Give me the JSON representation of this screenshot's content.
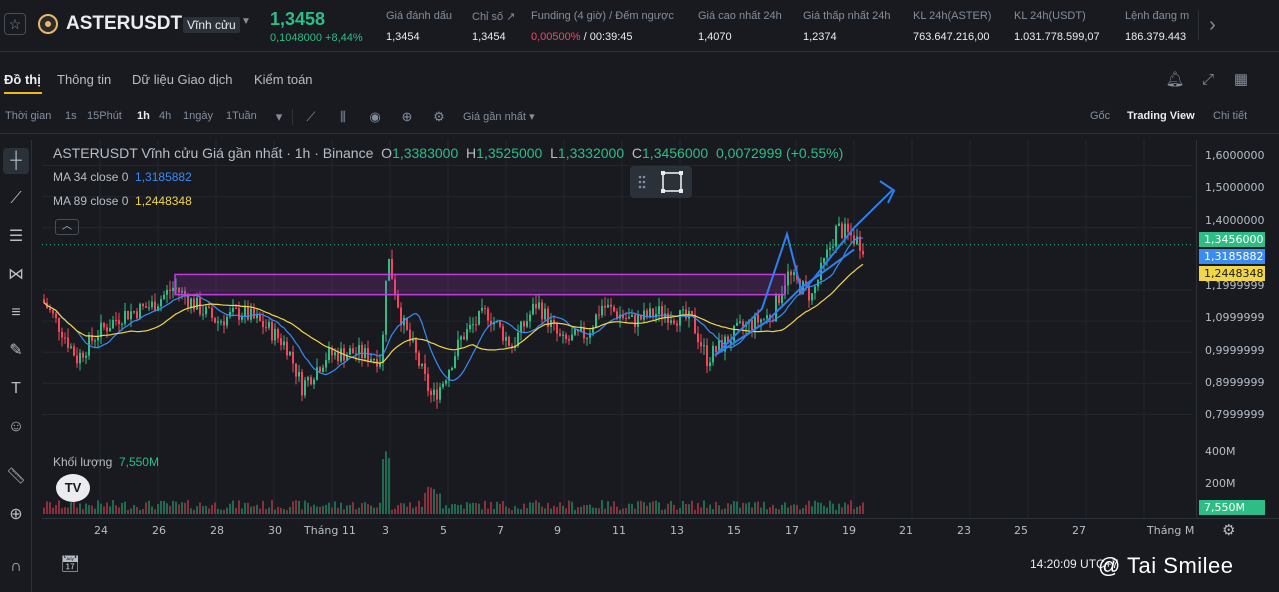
{
  "header": {
    "symbol": "ASTERUSDT",
    "contract_type": "Vĩnh cửu",
    "last_price": "1,3458",
    "change": "0,1048000 +8,44%",
    "stats": [
      {
        "label": "Giá đánh dấu",
        "value": "1,3454"
      },
      {
        "label": "Chỉ số ↗",
        "value": "1,3454"
      },
      {
        "label": "Funding (4 giờ) / Đếm ngược",
        "rate": "0,00500%",
        "countdown": " / 00:39:45"
      },
      {
        "label": "Giá cao nhất 24h",
        "value": "1,4070"
      },
      {
        "label": "Giá thấp nhất 24h",
        "value": "1,2374"
      },
      {
        "label": "KL 24h(ASTER)",
        "value": "763.647.216,00"
      },
      {
        "label": "KL 24h(USDT)",
        "value": "1.031.778.599,07"
      },
      {
        "label": "Lệnh đang m",
        "value": "186.379.443"
      }
    ],
    "accent_color": "#2ebd85",
    "down_color": "#f6465d"
  },
  "tabs": [
    "Đồ thị",
    "Thông tin",
    "Dữ liệu Giao dịch",
    "Kiểm toán"
  ],
  "toolbar": {
    "time_label": "Thời gian",
    "intervals": [
      "1s",
      "15Phút",
      "1h",
      "4h",
      "1ngày",
      "1Tuần"
    ],
    "active_interval": "1h",
    "price_type": "Giá gần nhất",
    "views": [
      "Gốc",
      "Trading View",
      "Chi tiết"
    ],
    "active_view": "Trading View"
  },
  "chart_legend": {
    "title": "ASTERUSDT Vĩnh cửu Giá gần nhất · 1h · Binance",
    "o_label": "O",
    "o": "1,3383000",
    "h_label": "H",
    "h": "1,3525000",
    "l_label": "L",
    "l": "1,3332000",
    "c_label": "C",
    "c": "1,3456000",
    "chg": "0,0072999 (+0.55%)",
    "ma34_label": "MA 34 close 0",
    "ma34_value": "1,3185882",
    "ma89_label": "MA 89 close 0",
    "ma89_value": "1,2448348",
    "ma34_color": "#3b8bf4",
    "ma89_color": "#f0d648",
    "volume_label": "Khối lượng",
    "volume_value": "7,550M"
  },
  "chart_data": {
    "type": "candlestick",
    "price_axis": [
      "1,6000000",
      "1,5000000",
      "1,4000000",
      "1,1999999",
      "1,0999999",
      "0,9999999",
      "0,8999999",
      "0,7999999"
    ],
    "price_tags": {
      "last": "1,3456000",
      "ma34": "1,3185882",
      "ma89": "1,2448348"
    },
    "volume_axis": [
      "400M",
      "200M"
    ],
    "volume_tag": "7,550M",
    "ylim": [
      0.75,
      1.65
    ],
    "time_axis": [
      "24",
      "26",
      "28",
      "30",
      "Tháng 11",
      "3",
      "5",
      "7",
      "9",
      "11",
      "13",
      "15",
      "17",
      "19",
      "21",
      "23",
      "25",
      "27",
      "Tháng M"
    ],
    "series": [
      {
        "name": "MA 34 close 0",
        "last": 1.3185882
      },
      {
        "name": "MA 89 close 0",
        "last": 1.2448348
      }
    ]
  },
  "footer": {
    "clock": "14:20:09 UTC+7",
    "watermark": "@ Tai Smilee"
  }
}
